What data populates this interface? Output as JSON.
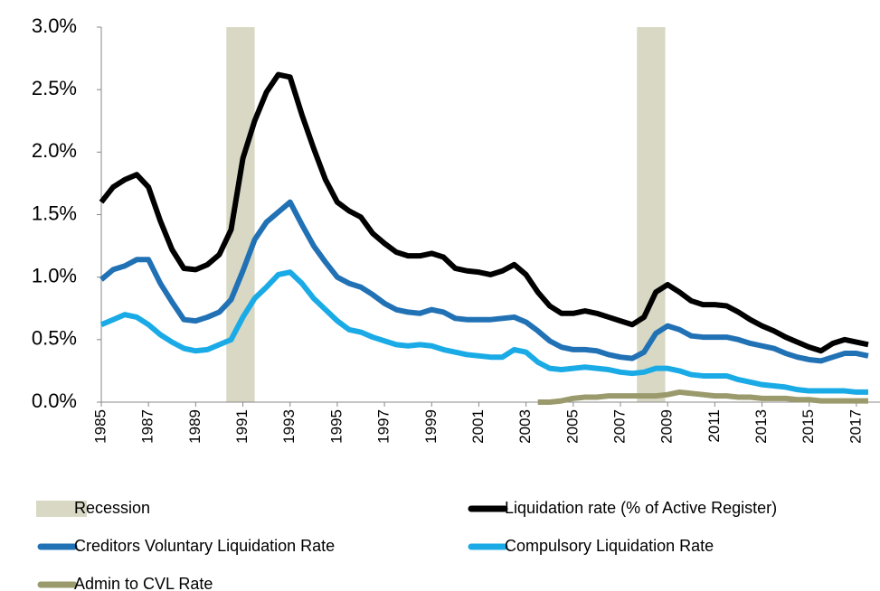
{
  "chart_data": {
    "type": "line",
    "x": [
      1985,
      1985.5,
      1986,
      1986.5,
      1987,
      1987.5,
      1988,
      1988.5,
      1989,
      1989.5,
      1990,
      1990.5,
      1991,
      1991.5,
      1992,
      1992.5,
      1993,
      1993.5,
      1994,
      1994.5,
      1995,
      1995.5,
      1996,
      1996.5,
      1997,
      1997.5,
      1998,
      1998.5,
      1999,
      1999.5,
      2000,
      2000.5,
      2001,
      2001.5,
      2002,
      2002.5,
      2003,
      2003.5,
      2004,
      2004.5,
      2005,
      2005.5,
      2006,
      2006.5,
      2007,
      2007.5,
      2008,
      2008.5,
      2009,
      2009.5,
      2010,
      2010.5,
      2011,
      2011.5,
      2012,
      2012.5,
      2013,
      2013.5,
      2014,
      2014.5,
      2015,
      2015.5,
      2016,
      2016.5,
      2017,
      2017.5
    ],
    "recession": {
      "name": "Recession",
      "color": "#d8d8c4",
      "periods": [
        [
          1990.3,
          1991.5
        ],
        [
          2007.7,
          2008.9
        ]
      ]
    },
    "series": [
      {
        "name": "Liquidation rate (% of Active Register)",
        "color": "#000000",
        "values": [
          1.6,
          1.72,
          1.78,
          1.82,
          1.72,
          1.45,
          1.22,
          1.07,
          1.06,
          1.1,
          1.18,
          1.38,
          1.95,
          2.25,
          2.48,
          2.62,
          2.6,
          2.3,
          2.03,
          1.78,
          1.6,
          1.53,
          1.48,
          1.35,
          1.27,
          1.2,
          1.17,
          1.17,
          1.19,
          1.16,
          1.07,
          1.05,
          1.04,
          1.02,
          1.05,
          1.1,
          1.02,
          0.88,
          0.77,
          0.71,
          0.71,
          0.73,
          0.71,
          0.68,
          0.65,
          0.62,
          0.68,
          0.88,
          0.94,
          0.88,
          0.81,
          0.78,
          0.78,
          0.77,
          0.72,
          0.66,
          0.61,
          0.57,
          0.52,
          0.48,
          0.44,
          0.41,
          0.47,
          0.5,
          0.48,
          0.46
        ]
      },
      {
        "name": "Creditors Voluntary Liquidation Rate",
        "color": "#2171b5",
        "values": [
          0.98,
          1.06,
          1.09,
          1.14,
          1.14,
          0.95,
          0.8,
          0.66,
          0.65,
          0.68,
          0.72,
          0.82,
          1.05,
          1.3,
          1.44,
          1.52,
          1.6,
          1.42,
          1.25,
          1.12,
          1.0,
          0.95,
          0.92,
          0.86,
          0.79,
          0.74,
          0.72,
          0.71,
          0.74,
          0.72,
          0.67,
          0.66,
          0.66,
          0.66,
          0.67,
          0.68,
          0.64,
          0.57,
          0.49,
          0.44,
          0.42,
          0.42,
          0.41,
          0.38,
          0.36,
          0.35,
          0.4,
          0.55,
          0.61,
          0.58,
          0.53,
          0.52,
          0.52,
          0.52,
          0.5,
          0.47,
          0.45,
          0.43,
          0.39,
          0.36,
          0.34,
          0.33,
          0.36,
          0.39,
          0.39,
          0.37
        ]
      },
      {
        "name": "Compulsory Liquidation Rate",
        "color": "#1aabe6",
        "values": [
          0.62,
          0.66,
          0.7,
          0.68,
          0.62,
          0.54,
          0.48,
          0.43,
          0.41,
          0.42,
          0.46,
          0.5,
          0.68,
          0.83,
          0.92,
          1.02,
          1.04,
          0.95,
          0.83,
          0.74,
          0.65,
          0.58,
          0.56,
          0.52,
          0.49,
          0.46,
          0.45,
          0.46,
          0.45,
          0.42,
          0.4,
          0.38,
          0.37,
          0.36,
          0.36,
          0.42,
          0.4,
          0.32,
          0.27,
          0.26,
          0.27,
          0.28,
          0.27,
          0.26,
          0.24,
          0.23,
          0.24,
          0.27,
          0.27,
          0.25,
          0.22,
          0.21,
          0.21,
          0.21,
          0.18,
          0.16,
          0.14,
          0.13,
          0.12,
          0.1,
          0.09,
          0.09,
          0.09,
          0.09,
          0.08,
          0.08
        ]
      },
      {
        "name": "Admin to CVL Rate",
        "color": "#9a9a6c",
        "values": [
          null,
          null,
          null,
          null,
          null,
          null,
          null,
          null,
          null,
          null,
          null,
          null,
          null,
          null,
          null,
          null,
          null,
          null,
          null,
          null,
          null,
          null,
          null,
          null,
          null,
          null,
          null,
          null,
          null,
          null,
          null,
          null,
          null,
          null,
          null,
          null,
          null,
          0.0,
          0.0,
          0.01,
          0.03,
          0.04,
          0.04,
          0.05,
          0.05,
          0.05,
          0.05,
          0.05,
          0.06,
          0.08,
          0.07,
          0.06,
          0.05,
          0.05,
          0.04,
          0.04,
          0.03,
          0.03,
          0.03,
          0.02,
          0.02,
          0.01,
          0.01,
          0.01,
          0.01,
          0.01
        ]
      }
    ],
    "xlim": [
      1985,
      2018
    ],
    "xticks": [
      1985,
      1987,
      1989,
      1991,
      1993,
      1995,
      1997,
      1999,
      2001,
      2003,
      2005,
      2007,
      2009,
      2011,
      2013,
      2015,
      2017
    ],
    "ylim": [
      0,
      3
    ],
    "yticks": [
      {
        "value": 0,
        "label": "0.0%"
      },
      {
        "value": 0.5,
        "label": "0.5%"
      },
      {
        "value": 1,
        "label": "1.0%"
      },
      {
        "value": 1.5,
        "label": "1.5%"
      },
      {
        "value": 2,
        "label": "2.0%"
      },
      {
        "value": 2.5,
        "label": "2.5%"
      },
      {
        "value": 3,
        "label": "3.0%"
      }
    ]
  }
}
